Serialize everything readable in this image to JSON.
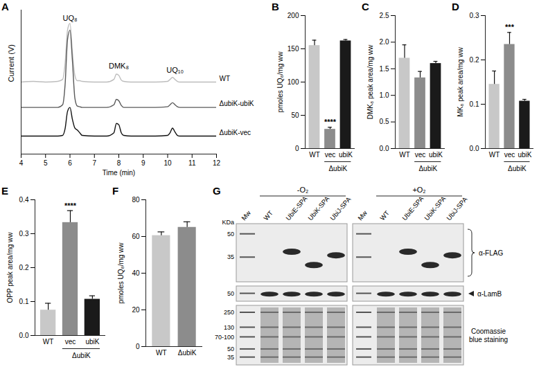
{
  "chart_data": [
    {
      "panel": "A",
      "type": "line",
      "x_label": "Time (min)",
      "y_label": "Current (V)",
      "xlim": [
        4,
        12
      ],
      "xticks": [
        4,
        5,
        6,
        7,
        8,
        9,
        10,
        11,
        12
      ],
      "ylim": [
        0,
        10.8
      ],
      "tick_labels": "x",
      "x": [
        4,
        4.5,
        5,
        5.5,
        5.7,
        5.8,
        5.9,
        6,
        6.1,
        6.2,
        6.3,
        6.4,
        6.5,
        7,
        7.5,
        7.8,
        7.9,
        8,
        8.1,
        8.2,
        8.5,
        9,
        9.5,
        10,
        10.1,
        10.2,
        10.3,
        10.4,
        10.5,
        11,
        11.5,
        12
      ],
      "series": [
        {
          "name": "WT",
          "color": "#bdbdbd",
          "values": [
            5.4,
            5.45,
            5.4,
            5.45,
            5.6,
            6.8,
            9.3,
            9.8,
            7.6,
            5.9,
            5.5,
            5.5,
            5.45,
            5.4,
            5.4,
            5.6,
            6.0,
            5.9,
            5.55,
            5.45,
            5.4,
            5.4,
            5.4,
            5.45,
            5.6,
            5.75,
            5.6,
            5.45,
            5.4,
            5.4,
            5.4,
            5.4
          ]
        },
        {
          "name": "ΔubiK-ubiK",
          "color": "#5a5a5a",
          "values": [
            3.5,
            3.5,
            3.5,
            3.5,
            3.7,
            5.2,
            8.6,
            9.3,
            7.0,
            4.2,
            3.6,
            3.55,
            3.5,
            3.5,
            3.5,
            3.7,
            4.1,
            4.0,
            3.65,
            3.5,
            3.5,
            3.5,
            3.5,
            3.55,
            3.7,
            3.85,
            3.7,
            3.55,
            3.5,
            3.5,
            3.5,
            3.5
          ]
        },
        {
          "name": "ΔubiK-vec",
          "color": "#111111",
          "values": [
            1.35,
            1.35,
            1.35,
            1.35,
            1.4,
            1.9,
            3.2,
            3.5,
            2.6,
            1.95,
            1.8,
            1.6,
            1.4,
            1.35,
            1.35,
            1.6,
            2.3,
            2.2,
            1.6,
            1.4,
            1.35,
            1.35,
            1.35,
            1.4,
            1.6,
            1.95,
            1.65,
            1.4,
            1.35,
            1.35,
            1.35,
            1.35
          ]
        }
      ],
      "annotations": [
        {
          "text": "UQ₈",
          "x": 6,
          "y": 10.2
        },
        {
          "text": "DMK₈",
          "x": 8,
          "y": 6.6
        },
        {
          "text": "UQ₁₀",
          "x": 10.3,
          "y": 6.3
        }
      ]
    },
    {
      "panel": "B",
      "type": "bar",
      "y_label": "pmoles UQ₈/mg ww",
      "categories": [
        "WT",
        "vec",
        "ubiK"
      ],
      "values": [
        155,
        29,
        162
      ],
      "errors": [
        8,
        3,
        2
      ],
      "colors": [
        "#c8c8c8",
        "#8c8c8c",
        "#1a1a1a"
      ],
      "ylim": [
        0,
        200
      ],
      "yticks": [
        0,
        50,
        100,
        150,
        200
      ],
      "group": {
        "label": "ΔubiK",
        "categories": [
          "vec",
          "ubiK"
        ]
      },
      "annotations": [
        {
          "category": "vec",
          "text": "****"
        }
      ]
    },
    {
      "panel": "C",
      "type": "bar",
      "y_label": "DMK₈ peak area/mg ww",
      "categories": [
        "WT",
        "vec",
        "ubiK"
      ],
      "values": [
        1.7,
        1.33,
        1.6
      ],
      "errors": [
        0.25,
        0.12,
        0.04
      ],
      "colors": [
        "#c8c8c8",
        "#8c8c8c",
        "#1a1a1a"
      ],
      "ylim": [
        0,
        2.5
      ],
      "yticks": [
        {
          "value": 0,
          "label": "0.0"
        },
        0.5,
        {
          "value": 1,
          "label": "1.0"
        },
        1.5,
        {
          "value": 2,
          "label": "2.0"
        },
        2.5
      ],
      "group": {
        "label": "ΔubiK",
        "categories": [
          "vec",
          "ubiK"
        ]
      }
    },
    {
      "panel": "D",
      "type": "bar",
      "y_label": "MK₈ peak area/mg ww",
      "categories": [
        "WT",
        "vec",
        "ubiK"
      ],
      "values": [
        0.145,
        0.235,
        0.107
      ],
      "errors": [
        0.03,
        0.027,
        0.004
      ],
      "colors": [
        "#c8c8c8",
        "#8c8c8c",
        "#1a1a1a"
      ],
      "ylim": [
        0,
        0.3
      ],
      "yticks": [
        {
          "value": 0,
          "label": "0.0"
        },
        0.1,
        0.2,
        0.3
      ],
      "group": {
        "label": "ΔubiK",
        "categories": [
          "vec",
          "ubiK"
        ]
      },
      "annotations": [
        {
          "category": "vec",
          "text": "***"
        }
      ]
    },
    {
      "panel": "E",
      "type": "bar",
      "y_label": "OPP peak area/mg ww",
      "categories": [
        "WT",
        "vec",
        "ubiK"
      ],
      "values": [
        0.075,
        0.333,
        0.107
      ],
      "errors": [
        0.02,
        0.035,
        0.01
      ],
      "colors": [
        "#c8c8c8",
        "#8c8c8c",
        "#1a1a1a"
      ],
      "ylim": [
        0,
        0.4
      ],
      "yticks": [
        {
          "value": 0,
          "label": "0.0"
        },
        0.1,
        0.2,
        0.3,
        0.4
      ],
      "group": {
        "label": "ΔubiK",
        "categories": [
          "vec",
          "ubiK"
        ]
      },
      "annotations": [
        {
          "category": "vec",
          "text": "****"
        }
      ]
    },
    {
      "panel": "F",
      "type": "bar",
      "y_label": "pmoles UQ₈/mg ww",
      "categories": [
        "WT",
        "ΔubiK"
      ],
      "values": [
        60.5,
        65
      ],
      "errors": [
        2,
        3
      ],
      "colors": [
        "#c8c8c8",
        "#8c8c8c"
      ],
      "ylim": [
        0,
        80
      ],
      "yticks": [
        0,
        20,
        40,
        60,
        80
      ]
    }
  ],
  "blot": {
    "panel": "G",
    "marker_lane": "Mw",
    "conditions": [
      {
        "label": "-O₂",
        "lanes": [
          "WT",
          "UbiE-SPA",
          "UbiK-SPA",
          "UbiJ-SPA"
        ]
      },
      {
        "label": "+O₂",
        "lanes": [
          "WT",
          "UbiE-SPA",
          "UbiK-SPA",
          "UbiJ-SPA"
        ]
      }
    ],
    "blots": [
      {
        "label": "α-FLAG",
        "unit": "KDa",
        "range": [
          25,
          56
        ],
        "markers": [
          50,
          35
        ],
        "bands": {
          "UbiE-SPA": 38,
          "UbiK-SPA": 31,
          "UbiJ-SPA": 36
        }
      },
      {
        "label": "α-LamB",
        "range": [
          44,
          56
        ],
        "markers": [
          50
        ],
        "bands": {
          "WT": 49,
          "UbiE-SPA": 49,
          "UbiK-SPA": 49,
          "UbiJ-SPA": 49
        }
      },
      {
        "label": "Coomassie blue staining",
        "range": [
          28,
          300
        ],
        "markers": [
          250,
          130,
          {
            "value": 85,
            "label": "70-100"
          },
          50,
          35
        ]
      }
    ]
  }
}
